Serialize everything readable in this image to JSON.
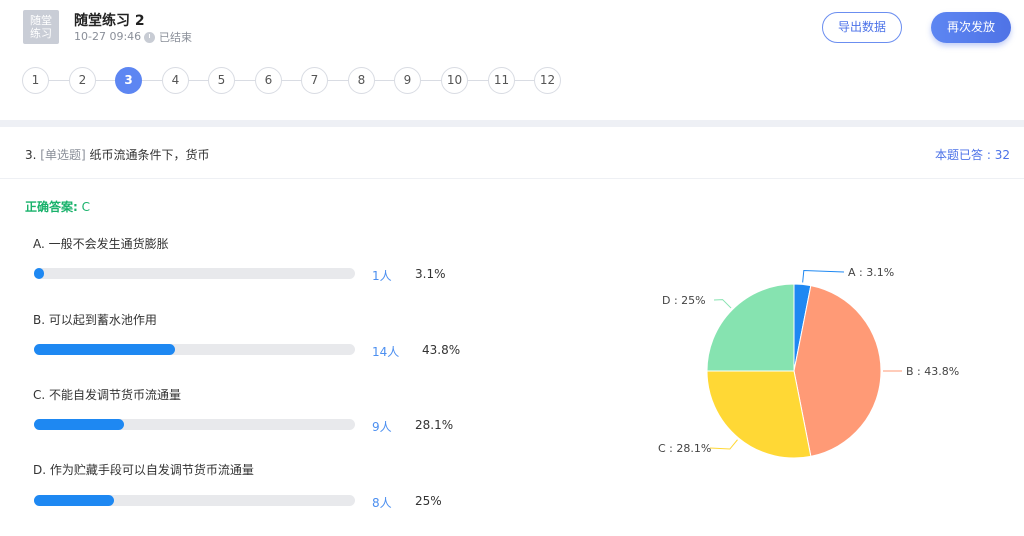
{
  "header": {
    "icon_text_line1": "随堂",
    "icon_text_line2": "练习",
    "title": "随堂练习 2",
    "time": "10-27 09:46",
    "status": "已结束",
    "export_label": "导出数据",
    "resend_label": "再次发放"
  },
  "question_nav": {
    "items": [
      "1",
      "2",
      "3",
      "4",
      "5",
      "6",
      "7",
      "8",
      "9",
      "10",
      "11",
      "12"
    ],
    "active": "3"
  },
  "question": {
    "number": "3.",
    "type": "[单选题]",
    "text": "纸币流通条件下，货币",
    "answered_count": "本题已答 : 32",
    "correct_label": "正确答案:",
    "correct_value": "C"
  },
  "options": [
    {
      "label": "A.  一般不会发生通货膨胀",
      "count": "1人",
      "pct": "3.1%",
      "fraction": 0.031
    },
    {
      "label": "B.  可以起到蓄水池作用",
      "count": "14人",
      "pct": "43.8%",
      "fraction": 0.438
    },
    {
      "label": "C.  不能自发调节货币流通量",
      "count": "9人",
      "pct": "28.1%",
      "fraction": 0.281
    },
    {
      "label": "D.  作为贮藏手段可以自发调节货币流通量",
      "count": "8人",
      "pct": "25%",
      "fraction": 0.25
    }
  ],
  "chart_data": {
    "type": "pie",
    "slices": [
      {
        "label": "A : 3.1%",
        "value": 3.1,
        "color": "#1e88f2"
      },
      {
        "label": "B : 43.8%",
        "value": 43.8,
        "color": "#ff9a76"
      },
      {
        "label": "C : 28.1%",
        "value": 28.1,
        "color": "#ffd835"
      },
      {
        "label": "D : 25%",
        "value": 25,
        "color": "#86e3b0"
      }
    ]
  }
}
